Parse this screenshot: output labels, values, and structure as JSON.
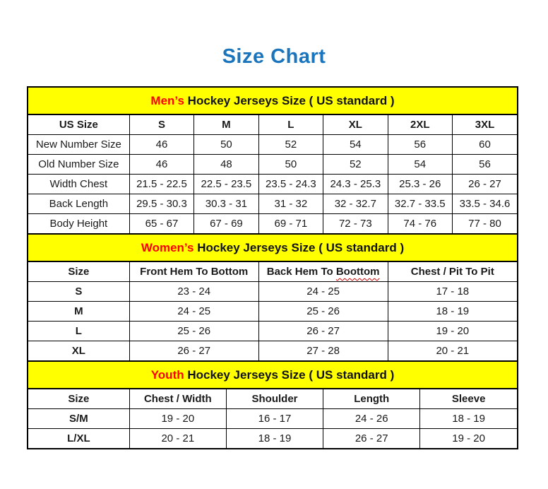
{
  "title": "Size Chart",
  "colors": {
    "title_blue": "#1B75BC",
    "heading_background": "#FFFF00",
    "heading_accent_red": "#FF0000",
    "border_black": "#000000",
    "spellcheck_squiggle_red": "#D40000"
  },
  "sections": [
    {
      "id": "mens",
      "heading_accent": "Men’s",
      "heading_rest": "Hockey Jerseys Size ( US standard )",
      "columns": [
        "US Size",
        "S",
        "M",
        "L",
        "XL",
        "2XL",
        "3XL"
      ],
      "rows": [
        [
          "New Number Size",
          "46",
          "50",
          "52",
          "54",
          "56",
          "60"
        ],
        [
          "Old Number Size",
          "46",
          "48",
          "50",
          "52",
          "54",
          "56"
        ],
        [
          "Width Chest",
          "21.5 - 22.5",
          "22.5 - 23.5",
          "23.5 - 24.3",
          "24.3 - 25.3",
          "25.3 - 26",
          "26 - 27"
        ],
        [
          "Back Length",
          "29.5 - 30.3",
          "30.3 - 31",
          "31 - 32",
          "32 - 32.7",
          "32.7 - 33.5",
          "33.5 - 34.6"
        ],
        [
          "Body Height",
          "65 - 67",
          "67 - 69",
          "69 - 71",
          "72 - 73",
          "74 - 76",
          "77 - 80"
        ]
      ]
    },
    {
      "id": "womens",
      "heading_accent": "Women’s",
      "heading_rest": "Hockey Jerseys Size ( US standard )",
      "columns": [
        "Size",
        "Front Hem To Bottom",
        "Back Hem To Boottom",
        "Chest / Pit To Pit"
      ],
      "squiggle": {
        "column": 2,
        "word": "Boottom"
      },
      "rows": [
        [
          "S",
          "23 - 24",
          "24 - 25",
          "17 - 18"
        ],
        [
          "M",
          "24 - 25",
          "25 - 26",
          "18 - 19"
        ],
        [
          "L",
          "25 - 26",
          "26 - 27",
          "19 - 20"
        ],
        [
          "XL",
          "26 - 27",
          "27 - 28",
          "20 - 21"
        ]
      ]
    },
    {
      "id": "youth",
      "heading_accent": "Youth",
      "heading_rest": "Hockey Jerseys Size ( US standard )",
      "columns": [
        "Size",
        "Chest / Width",
        "Shoulder",
        "Length",
        "Sleeve"
      ],
      "rows": [
        [
          "S/M",
          "19 - 20",
          "16 - 17",
          "24 - 26",
          "18 - 19"
        ],
        [
          "L/XL",
          "20 - 21",
          "18 - 19",
          "26 - 27",
          "19 - 20"
        ]
      ]
    }
  ]
}
